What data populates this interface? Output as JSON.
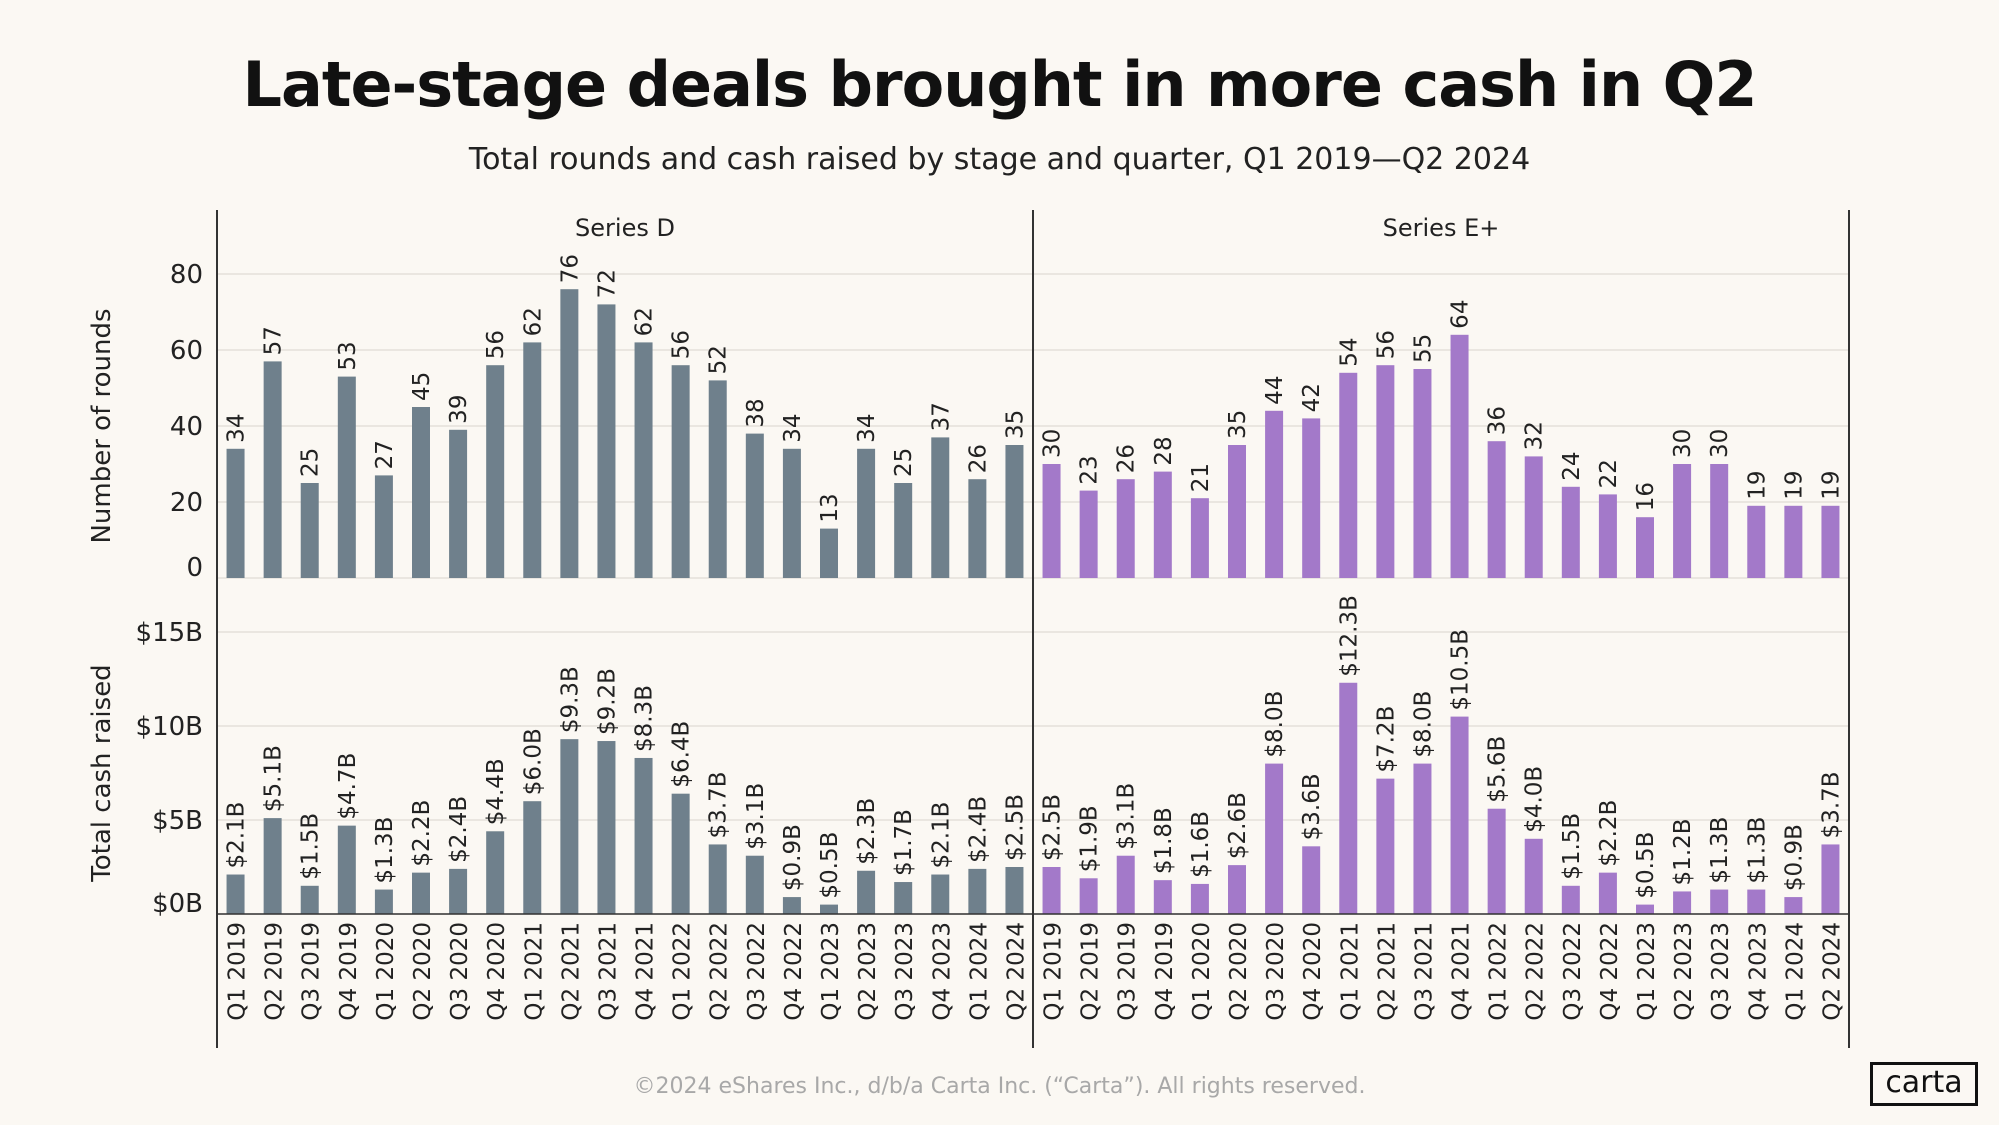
{
  "title": "Late-stage deals brought in more cash in Q2",
  "subtitle": "Total rounds and cash raised by stage and quarter, Q1 2019—Q2 2024",
  "footer": "©2024 eShares Inc., d/b/a Carta Inc. (“Carta”). All rights reserved.",
  "logo": "carta",
  "chart_data": {
    "type": "bar",
    "categories": [
      "Q1 2019",
      "Q2 2019",
      "Q3 2019",
      "Q4 2019",
      "Q1 2020",
      "Q2 2020",
      "Q3 2020",
      "Q4 2020",
      "Q1 2021",
      "Q2 2021",
      "Q3 2021",
      "Q4 2021",
      "Q1 2022",
      "Q2 2022",
      "Q3 2022",
      "Q4 2022",
      "Q1 2023",
      "Q2 2023",
      "Q3 2023",
      "Q4 2023",
      "Q1 2024",
      "Q2 2024"
    ],
    "facets": [
      {
        "name": "Series D",
        "color": "#6f808c",
        "rounds": [
          34,
          57,
          25,
          53,
          27,
          45,
          39,
          56,
          62,
          76,
          72,
          62,
          56,
          52,
          38,
          34,
          13,
          34,
          25,
          37,
          26,
          35
        ],
        "cash": [
          2.1,
          5.1,
          1.5,
          4.7,
          1.3,
          2.2,
          2.4,
          4.4,
          6.0,
          9.3,
          9.2,
          8.3,
          6.4,
          3.7,
          3.1,
          0.9,
          0.5,
          2.3,
          1.7,
          2.1,
          2.4,
          2.5
        ]
      },
      {
        "name": "Series E+",
        "color": "#a379c9",
        "rounds": [
          30,
          23,
          26,
          28,
          21,
          35,
          44,
          42,
          54,
          56,
          55,
          64,
          36,
          32,
          24,
          22,
          16,
          30,
          30,
          19,
          19,
          19
        ],
        "cash": [
          2.5,
          1.9,
          3.1,
          1.8,
          1.6,
          2.6,
          8.0,
          3.6,
          12.3,
          7.2,
          8.0,
          10.5,
          5.6,
          4.0,
          1.5,
          2.2,
          0.5,
          1.2,
          1.3,
          1.3,
          0.9,
          3.7
        ]
      }
    ],
    "rows": [
      {
        "ylabel": "Number of rounds",
        "ylim": [
          0,
          80
        ],
        "ticks": [
          0,
          20,
          40,
          60,
          80
        ],
        "tick_labels": [
          "0",
          "20",
          "40",
          "60",
          "80"
        ]
      },
      {
        "ylabel": "Total cash raised",
        "ylim": [
          0,
          15
        ],
        "ticks": [
          0,
          5,
          10,
          15
        ],
        "tick_labels": [
          "$0B",
          "$5B",
          "$10B",
          "$15B"
        ],
        "unit_prefix": "$",
        "unit_suffix": "B"
      }
    ],
    "grid": true
  }
}
